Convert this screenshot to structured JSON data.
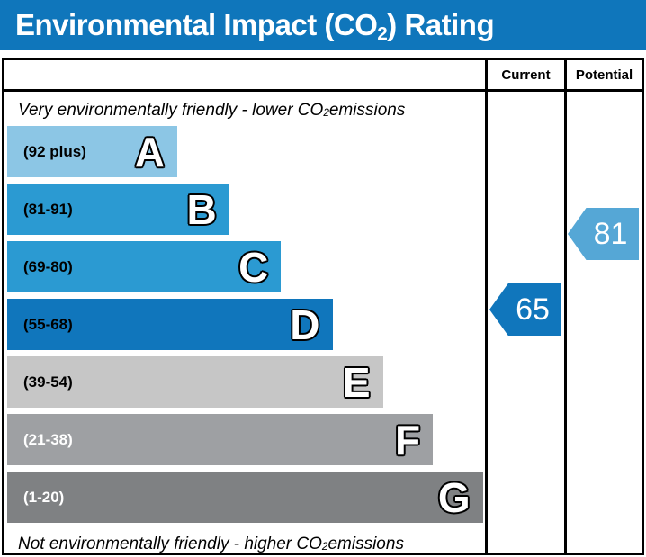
{
  "title": {
    "pre": "Environmental Impact (CO",
    "sub": "2",
    "post": ") Rating"
  },
  "columns": {
    "current": "Current",
    "potential": "Potential"
  },
  "notes": {
    "top": {
      "pre": "Very environmentally friendly - lower CO",
      "sub": "2",
      "post": " emissions"
    },
    "bottom": {
      "pre": "Not environmentally friendly - higher CO",
      "sub": "2",
      "post": " emissions"
    }
  },
  "bands": [
    {
      "letter": "A",
      "range": "(92 plus)",
      "color": "#8CC6E5",
      "width_pct": 35.4,
      "label_color": "#000000"
    },
    {
      "letter": "B",
      "range": "(81-91)",
      "color": "#2B9AD2",
      "width_pct": 46.2,
      "label_color": "#000000"
    },
    {
      "letter": "C",
      "range": "(69-80)",
      "color": "#2B9AD2",
      "width_pct": 57.0,
      "label_color": "#000000"
    },
    {
      "letter": "D",
      "range": "(55-68)",
      "color": "#1076BC",
      "width_pct": 67.7,
      "label_color": "#000000"
    },
    {
      "letter": "E",
      "range": "(39-54)",
      "color": "#C6C6C6",
      "width_pct": 78.2,
      "label_color": "#000000"
    },
    {
      "letter": "F",
      "range": "(21-38)",
      "color": "#9EA0A3",
      "width_pct": 88.6,
      "label_color": "#FFFFFF"
    },
    {
      "letter": "G",
      "range": "(1-20)",
      "color": "#7F8183",
      "width_pct": 99.0,
      "label_color": "#FFFFFF"
    }
  ],
  "ratings": {
    "current": {
      "value": "65",
      "color": "#1076BC"
    },
    "potential": {
      "value": "81",
      "color": "#55A7D6"
    }
  },
  "colors": {
    "title_bar": "#0F76BB",
    "border": "#000000",
    "background": "#FFFFFF"
  },
  "chart_data": {
    "type": "bar",
    "title": "Environmental Impact (CO2) Rating",
    "categories": [
      "A",
      "B",
      "C",
      "D",
      "E",
      "F",
      "G"
    ],
    "band_ranges": [
      "92 plus",
      "81-91",
      "69-80",
      "55-68",
      "39-54",
      "21-38",
      "1-20"
    ],
    "series": [
      {
        "name": "band-relative-width-pct",
        "values": [
          35.4,
          46.2,
          57.0,
          67.7,
          78.2,
          88.6,
          99.0
        ]
      }
    ],
    "annotations": [
      {
        "label": "Current",
        "value": 65,
        "band": "D"
      },
      {
        "label": "Potential",
        "value": 81,
        "band": "B"
      }
    ],
    "top_label": "Very environmentally friendly - lower CO2 emissions",
    "bottom_label": "Not environmentally friendly - higher CO2 emissions",
    "legend_position": "top-right-columns",
    "grid": false
  }
}
